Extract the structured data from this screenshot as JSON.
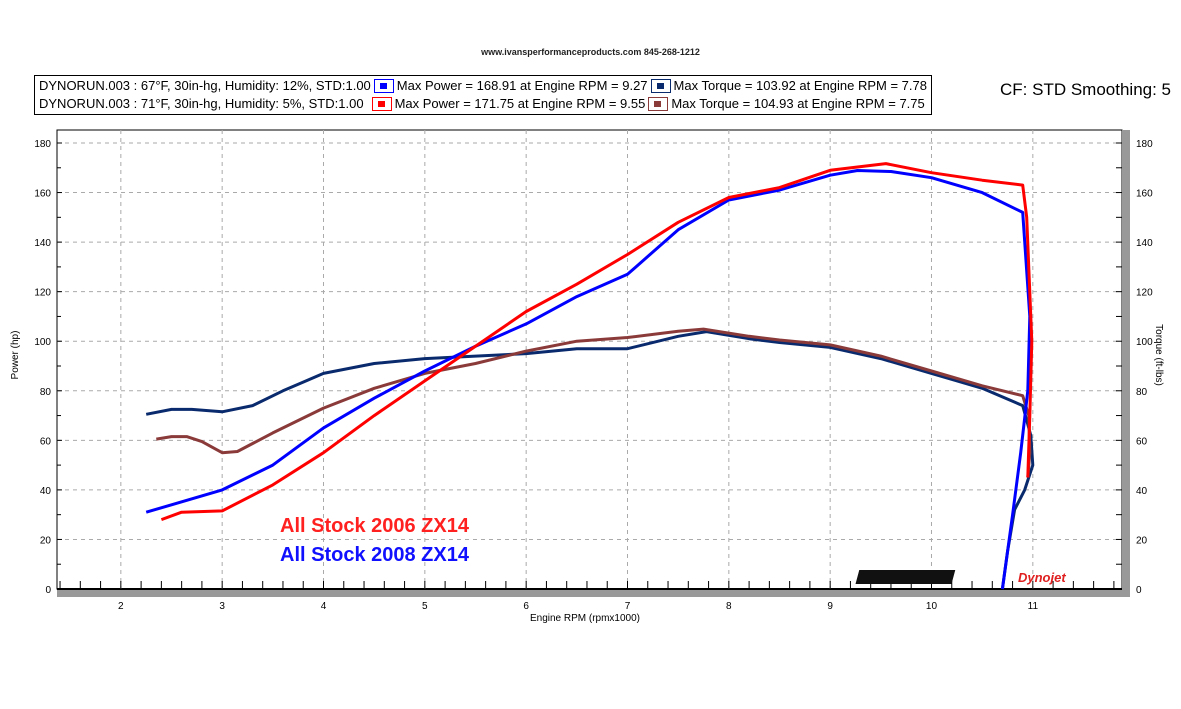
{
  "header": {
    "site": "www.ivansperformanceproducts.com  845-268-1212",
    "cf": "CF: STD Smoothing: 5"
  },
  "legend": [
    {
      "run": "DYNORUN.003 : 67°F, 30in-hg, Humidity: 12%, STD:1.00",
      "power": "Max Power = 168.91 at Engine RPM = 9.27",
      "torque": "Max Torque = 103.92 at Engine RPM = 7.78",
      "power_color": "#0000ff",
      "torque_color": "#0a2a6e"
    },
    {
      "run": "DYNORUN.003 : 71°F, 30in-hg, Humidity: 5%, STD:1.00",
      "power": "Max Power = 171.75 at Engine RPM = 9.55",
      "torque": "Max Torque = 104.93 at Engine RPM = 7.75",
      "power_color": "#ff0000",
      "torque_color": "#8b3a3a"
    }
  ],
  "annotations": [
    {
      "text": "All Stock 2006 ZX14",
      "color": "#ff2020"
    },
    {
      "text": "All Stock 2008 ZX14",
      "color": "#1010ff"
    }
  ],
  "logo": "Dynojet",
  "chart_data": {
    "type": "line",
    "xlabel": "Engine RPM (rpmx1000)",
    "ylabel": "Power (hp)",
    "y2label": "Torque (ft-lbs)",
    "xlim": [
      1.37,
      11.88
    ],
    "ylim": [
      0,
      185
    ],
    "xticks": [
      "2",
      "3",
      "4",
      "5",
      "6",
      "7",
      "8",
      "9",
      "10",
      "11"
    ],
    "yticks": [
      "0",
      "20",
      "40",
      "60",
      "80",
      "100",
      "120",
      "140",
      "160",
      "180"
    ],
    "grid": true,
    "series": [
      {
        "name": "Torque 2008",
        "color": "#0a2a6e",
        "points": [
          [
            2.25,
            70.5
          ],
          [
            2.5,
            72.5
          ],
          [
            2.7,
            72.5
          ],
          [
            3,
            71.5
          ],
          [
            3.3,
            74
          ],
          [
            3.6,
            80
          ],
          [
            4,
            87
          ],
          [
            4.5,
            91
          ],
          [
            5,
            93
          ],
          [
            5.5,
            94
          ],
          [
            6,
            95
          ],
          [
            6.5,
            97
          ],
          [
            7,
            97
          ],
          [
            7.5,
            102
          ],
          [
            7.78,
            103.9
          ],
          [
            8.2,
            101
          ],
          [
            8.5,
            99.5
          ],
          [
            9,
            97.5
          ],
          [
            9.5,
            93
          ],
          [
            10,
            87
          ],
          [
            10.5,
            81
          ],
          [
            10.9,
            74
          ],
          [
            10.98,
            62
          ],
          [
            11.0,
            50
          ],
          [
            10.92,
            40
          ],
          [
            10.82,
            32
          ],
          [
            10.75,
            15
          ],
          [
            10.7,
            0
          ]
        ]
      },
      {
        "name": "Torque 2006",
        "color": "#8b3a3a",
        "points": [
          [
            2.35,
            60.5
          ],
          [
            2.5,
            61.5
          ],
          [
            2.65,
            61.5
          ],
          [
            2.8,
            59.5
          ],
          [
            3,
            55
          ],
          [
            3.15,
            55.5
          ],
          [
            3.5,
            63
          ],
          [
            4,
            73
          ],
          [
            4.5,
            81
          ],
          [
            5,
            87
          ],
          [
            5.5,
            91
          ],
          [
            6,
            96
          ],
          [
            6.5,
            100
          ],
          [
            7,
            101.5
          ],
          [
            7.5,
            104
          ],
          [
            7.75,
            104.9
          ],
          [
            8.2,
            102
          ],
          [
            8.5,
            100.5
          ],
          [
            9,
            98.5
          ],
          [
            9.5,
            94
          ],
          [
            10,
            88
          ],
          [
            10.5,
            82
          ],
          [
            10.9,
            78
          ],
          [
            10.96,
            70
          ],
          [
            10.97,
            55
          ],
          [
            10.95,
            45
          ]
        ]
      },
      {
        "name": "Power 2008",
        "color": "#0000ff",
        "points": [
          [
            2.25,
            31
          ],
          [
            2.5,
            34
          ],
          [
            3,
            40
          ],
          [
            3.5,
            50
          ],
          [
            4,
            65
          ],
          [
            4.5,
            77
          ],
          [
            5,
            88
          ],
          [
            5.5,
            98
          ],
          [
            6,
            107
          ],
          [
            6.5,
            118
          ],
          [
            7,
            127
          ],
          [
            7.5,
            145
          ],
          [
            8,
            157
          ],
          [
            8.5,
            161
          ],
          [
            9,
            167
          ],
          [
            9.27,
            168.9
          ],
          [
            9.6,
            168.5
          ],
          [
            10,
            166
          ],
          [
            10.5,
            160
          ],
          [
            10.9,
            152
          ],
          [
            10.97,
            110
          ],
          [
            10.95,
            80
          ],
          [
            10.88,
            55
          ],
          [
            10.8,
            30
          ],
          [
            10.7,
            0
          ]
        ]
      },
      {
        "name": "Power 2006",
        "color": "#ff0000",
        "points": [
          [
            2.4,
            28
          ],
          [
            2.6,
            31
          ],
          [
            3,
            31.5
          ],
          [
            3.5,
            42
          ],
          [
            4,
            55
          ],
          [
            4.5,
            70
          ],
          [
            5,
            84
          ],
          [
            5.5,
            98
          ],
          [
            6,
            112
          ],
          [
            6.5,
            123
          ],
          [
            7,
            135
          ],
          [
            7.5,
            148
          ],
          [
            8,
            158
          ],
          [
            8.5,
            162
          ],
          [
            9,
            169
          ],
          [
            9.55,
            171.7
          ],
          [
            10,
            168
          ],
          [
            10.5,
            165
          ],
          [
            10.9,
            163
          ],
          [
            10.94,
            150
          ],
          [
            10.99,
            100
          ],
          [
            10.97,
            70
          ],
          [
            10.95,
            45
          ]
        ]
      }
    ]
  }
}
